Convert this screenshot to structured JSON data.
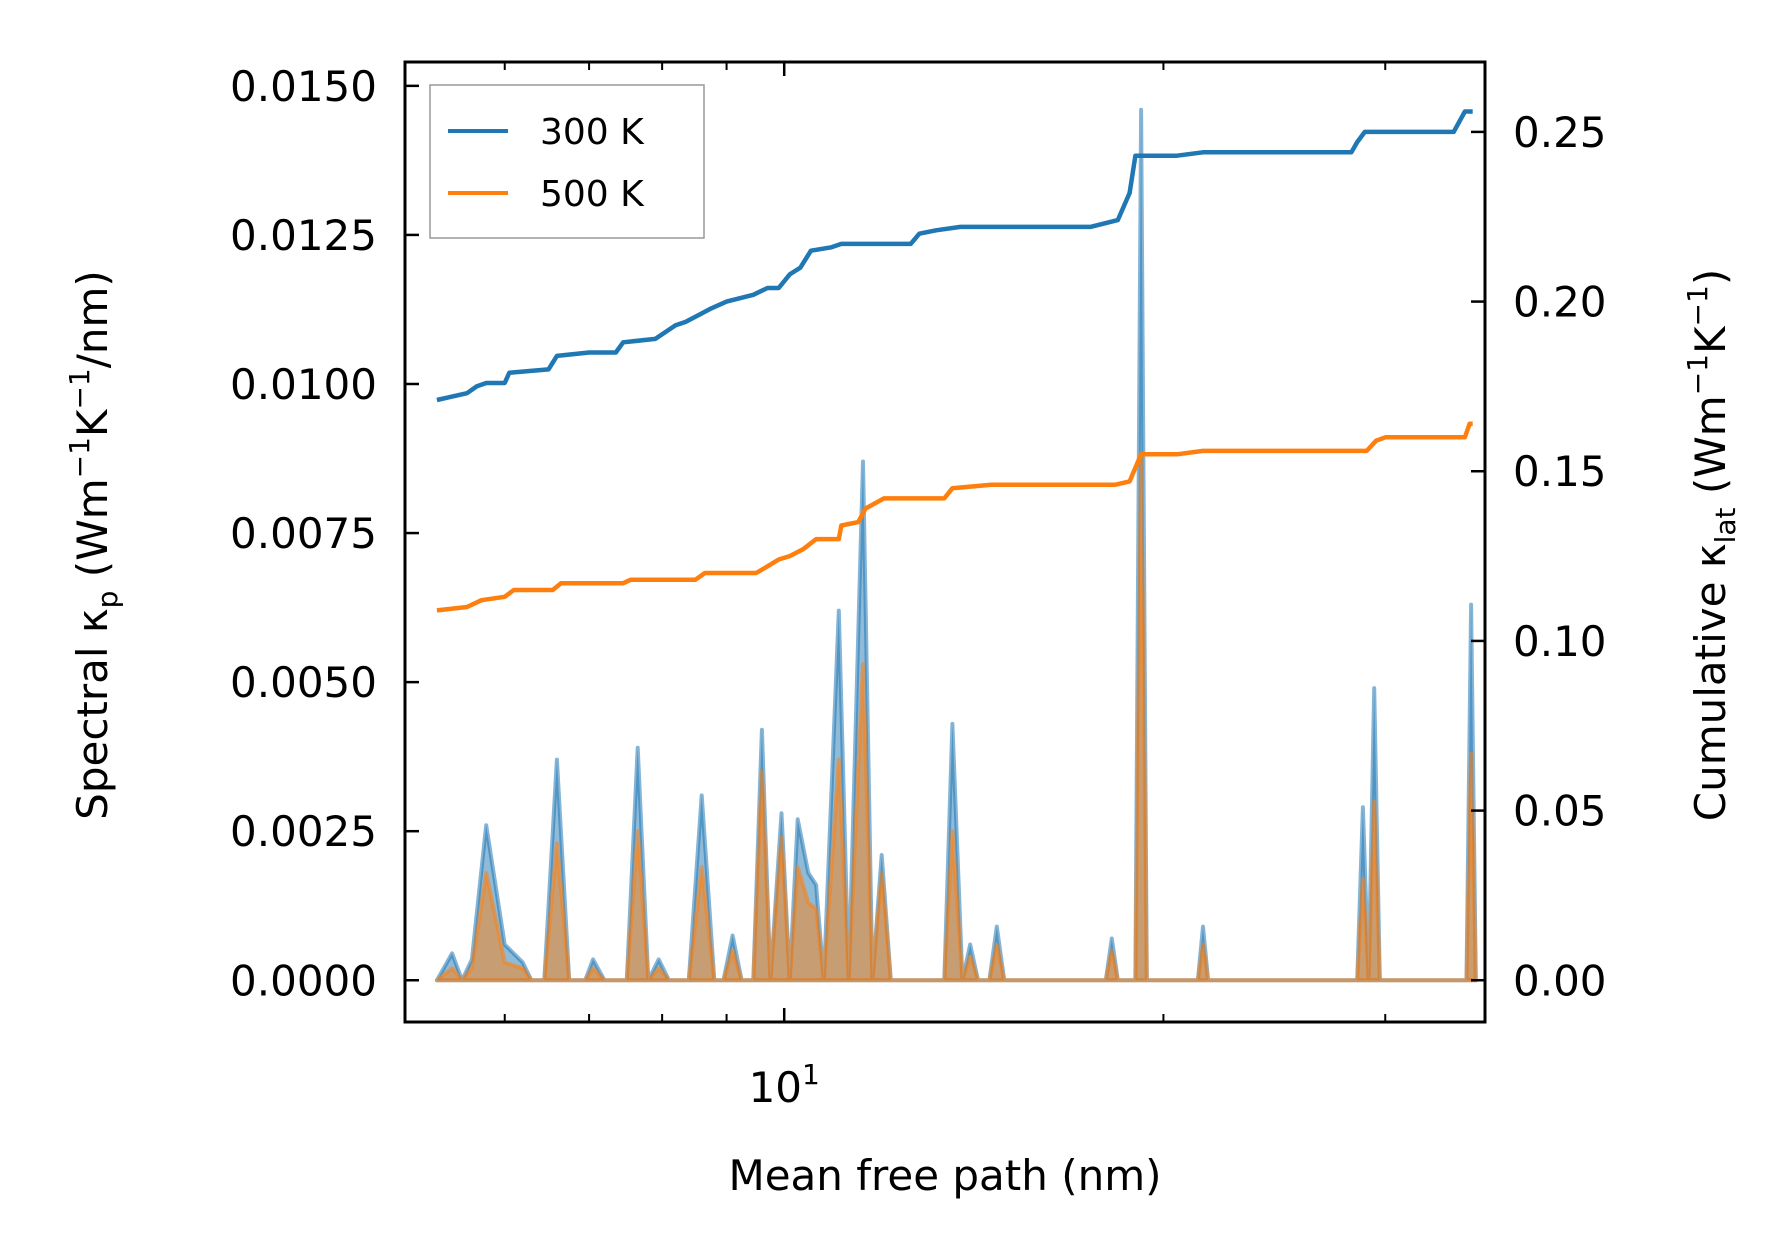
{
  "chart_data": {
    "type": "line",
    "xscale": "log",
    "xlabel": "Mean free path (nm)",
    "xlim": [
      5.0,
      36.0
    ],
    "xtick_labels": [
      {
        "value": 10,
        "base": "10",
        "exp": "1"
      }
    ],
    "y_left": {
      "label_main": "Spectral κ",
      "label_sub": "p",
      "label_unit_a": " (Wm",
      "label_unit_b": "K",
      "label_unit_c": "/nm)",
      "label_exp": "−1",
      "ylim": [
        -0.0007,
        0.0154
      ],
      "ticks": [
        0.0,
        0.0025,
        0.005,
        0.0075,
        0.01,
        0.0125,
        0.015
      ],
      "tick_labels": [
        "0.0000",
        "0.0025",
        "0.0050",
        "0.0075",
        "0.0100",
        "0.0125",
        "0.0150"
      ]
    },
    "y_right": {
      "label_main": "Cumulative κ",
      "label_sub": "lat",
      "label_unit_a": " (Wm",
      "label_unit_b": "K",
      "label_unit_c": ")",
      "label_exp": "−1",
      "ylim": [
        -0.0123,
        0.2706
      ],
      "ticks": [
        0.0,
        0.05,
        0.1,
        0.15,
        0.2,
        0.25
      ],
      "tick_labels": [
        "0.00",
        "0.05",
        "0.10",
        "0.15",
        "0.20",
        "0.25"
      ]
    },
    "legend": {
      "position": "top-left",
      "entries": [
        {
          "name": "300 K",
          "color": "#1f77b4"
        },
        {
          "name": "500 K",
          "color": "#ff7f0e"
        }
      ]
    },
    "series": [
      {
        "name": "300 K",
        "color": "#1f77b4",
        "cumulative": [
          [
            5.3,
            0.171
          ],
          [
            5.45,
            0.172
          ],
          [
            5.6,
            0.173
          ],
          [
            5.7,
            0.175
          ],
          [
            5.8,
            0.176
          ],
          [
            6.0,
            0.176
          ],
          [
            6.05,
            0.179
          ],
          [
            6.5,
            0.18
          ],
          [
            6.6,
            0.184
          ],
          [
            7.0,
            0.185
          ],
          [
            7.35,
            0.185
          ],
          [
            7.45,
            0.188
          ],
          [
            7.9,
            0.189
          ],
          [
            8.2,
            0.193
          ],
          [
            8.35,
            0.194
          ],
          [
            8.55,
            0.196
          ],
          [
            8.75,
            0.198
          ],
          [
            9.0,
            0.2
          ],
          [
            9.45,
            0.202
          ],
          [
            9.7,
            0.204
          ],
          [
            9.9,
            0.204
          ],
          [
            10.1,
            0.208
          ],
          [
            10.3,
            0.21
          ],
          [
            10.5,
            0.215
          ],
          [
            10.9,
            0.216
          ],
          [
            11.1,
            0.217
          ],
          [
            12.6,
            0.217
          ],
          [
            12.8,
            0.22
          ],
          [
            13.2,
            0.221
          ],
          [
            13.8,
            0.222
          ],
          [
            17.5,
            0.222
          ],
          [
            18.4,
            0.224
          ],
          [
            18.8,
            0.232
          ],
          [
            19.0,
            0.243
          ],
          [
            20.5,
            0.243
          ],
          [
            21.5,
            0.244
          ],
          [
            28.2,
            0.244
          ],
          [
            28.5,
            0.247
          ],
          [
            28.9,
            0.25
          ],
          [
            34.0,
            0.25
          ],
          [
            34.7,
            0.256
          ],
          [
            35.2,
            0.256
          ]
        ],
        "spectral": [
          [
            5.3,
            0.0
          ],
          [
            5.45,
            0.00045
          ],
          [
            5.55,
            0.0
          ],
          [
            5.65,
            0.00035
          ],
          [
            5.8,
            0.0026
          ],
          [
            6.0,
            0.0006
          ],
          [
            6.2,
            0.0003
          ],
          [
            6.3,
            0.0
          ],
          [
            6.45,
            0.0
          ],
          [
            6.6,
            0.0037
          ],
          [
            6.75,
            0.0
          ],
          [
            6.95,
            0.0
          ],
          [
            7.05,
            0.00035
          ],
          [
            7.2,
            0.0
          ],
          [
            7.5,
            0.0
          ],
          [
            7.65,
            0.0039
          ],
          [
            7.8,
            0.0
          ],
          [
            7.95,
            0.00035
          ],
          [
            8.1,
            0.0
          ],
          [
            8.4,
            0.0
          ],
          [
            8.6,
            0.0031
          ],
          [
            8.8,
            0.0
          ],
          [
            8.95,
            0.0
          ],
          [
            9.1,
            0.00075
          ],
          [
            9.25,
            0.0
          ],
          [
            9.45,
            0.0
          ],
          [
            9.6,
            0.0042
          ],
          [
            9.75,
            0.0
          ],
          [
            9.95,
            0.0028
          ],
          [
            10.1,
            0.0
          ],
          [
            10.25,
            0.0027
          ],
          [
            10.45,
            0.0018
          ],
          [
            10.6,
            0.0016
          ],
          [
            10.75,
            0.0
          ],
          [
            11.05,
            0.0062
          ],
          [
            11.25,
            0.0
          ],
          [
            11.55,
            0.0087
          ],
          [
            11.75,
            0.0
          ],
          [
            11.95,
            0.0021
          ],
          [
            12.15,
            0.0
          ],
          [
            13.4,
            0.0
          ],
          [
            13.6,
            0.0043
          ],
          [
            13.85,
            0.0
          ],
          [
            14.05,
            0.0006
          ],
          [
            14.25,
            0.0
          ],
          [
            14.55,
            0.0
          ],
          [
            14.75,
            0.0009
          ],
          [
            14.95,
            0.0
          ],
          [
            18.0,
            0.0
          ],
          [
            18.2,
            0.0007
          ],
          [
            18.4,
            0.0
          ],
          [
            19.0,
            0.0
          ],
          [
            19.2,
            0.0146
          ],
          [
            19.4,
            0.0
          ],
          [
            21.3,
            0.0
          ],
          [
            21.5,
            0.0009
          ],
          [
            21.7,
            0.0
          ],
          [
            28.5,
            0.0
          ],
          [
            28.8,
            0.0029
          ],
          [
            29.1,
            0.0
          ],
          [
            29.4,
            0.0049
          ],
          [
            29.7,
            0.0
          ],
          [
            34.8,
            0.0
          ],
          [
            35.1,
            0.0063
          ],
          [
            35.4,
            0.0
          ]
        ]
      },
      {
        "name": "500 K",
        "color": "#ff7f0e",
        "cumulative": [
          [
            5.3,
            0.109
          ],
          [
            5.6,
            0.11
          ],
          [
            5.75,
            0.112
          ],
          [
            6.0,
            0.113
          ],
          [
            6.1,
            0.115
          ],
          [
            6.55,
            0.115
          ],
          [
            6.65,
            0.117
          ],
          [
            7.45,
            0.117
          ],
          [
            7.55,
            0.118
          ],
          [
            8.5,
            0.118
          ],
          [
            8.65,
            0.12
          ],
          [
            9.5,
            0.12
          ],
          [
            9.7,
            0.122
          ],
          [
            9.9,
            0.124
          ],
          [
            10.1,
            0.125
          ],
          [
            10.35,
            0.127
          ],
          [
            10.6,
            0.13
          ],
          [
            11.05,
            0.13
          ],
          [
            11.1,
            0.134
          ],
          [
            11.45,
            0.135
          ],
          [
            11.6,
            0.139
          ],
          [
            12.0,
            0.142
          ],
          [
            13.4,
            0.142
          ],
          [
            13.6,
            0.145
          ],
          [
            14.6,
            0.146
          ],
          [
            18.3,
            0.146
          ],
          [
            18.8,
            0.147
          ],
          [
            19.2,
            0.155
          ],
          [
            20.5,
            0.155
          ],
          [
            21.5,
            0.156
          ],
          [
            29.0,
            0.156
          ],
          [
            29.5,
            0.159
          ],
          [
            30.0,
            0.16
          ],
          [
            34.7,
            0.16
          ],
          [
            35.0,
            0.164
          ],
          [
            35.2,
            0.164
          ]
        ],
        "spectral": [
          [
            5.3,
            0.0
          ],
          [
            5.45,
            0.0002
          ],
          [
            5.55,
            0.0
          ],
          [
            5.65,
            0.0002
          ],
          [
            5.8,
            0.0018
          ],
          [
            6.0,
            0.0003
          ],
          [
            6.2,
            0.0002
          ],
          [
            6.3,
            0.0
          ],
          [
            6.45,
            0.0
          ],
          [
            6.6,
            0.0023
          ],
          [
            6.75,
            0.0
          ],
          [
            6.95,
            0.0
          ],
          [
            7.05,
            0.0002
          ],
          [
            7.2,
            0.0
          ],
          [
            7.5,
            0.0
          ],
          [
            7.65,
            0.0025
          ],
          [
            7.8,
            0.0
          ],
          [
            7.95,
            0.0002
          ],
          [
            8.1,
            0.0
          ],
          [
            8.4,
            0.0
          ],
          [
            8.6,
            0.0019
          ],
          [
            8.8,
            0.0
          ],
          [
            8.95,
            0.0
          ],
          [
            9.1,
            0.0005
          ],
          [
            9.25,
            0.0
          ],
          [
            9.45,
            0.0
          ],
          [
            9.6,
            0.0035
          ],
          [
            9.75,
            0.0
          ],
          [
            9.95,
            0.0024
          ],
          [
            10.1,
            0.0
          ],
          [
            10.25,
            0.0019
          ],
          [
            10.45,
            0.0013
          ],
          [
            10.6,
            0.0012
          ],
          [
            10.75,
            0.0
          ],
          [
            11.05,
            0.0037
          ],
          [
            11.25,
            0.0
          ],
          [
            11.55,
            0.0053
          ],
          [
            11.75,
            0.0
          ],
          [
            11.95,
            0.0018
          ],
          [
            12.15,
            0.0
          ],
          [
            13.4,
            0.0
          ],
          [
            13.6,
            0.0025
          ],
          [
            13.85,
            0.0
          ],
          [
            14.05,
            0.0004
          ],
          [
            14.25,
            0.0
          ],
          [
            14.55,
            0.0
          ],
          [
            14.75,
            0.0006
          ],
          [
            14.95,
            0.0
          ],
          [
            18.0,
            0.0
          ],
          [
            18.2,
            0.0005
          ],
          [
            18.4,
            0.0
          ],
          [
            19.0,
            0.0
          ],
          [
            19.2,
            0.0088
          ],
          [
            19.4,
            0.0
          ],
          [
            21.3,
            0.0
          ],
          [
            21.5,
            0.0006
          ],
          [
            21.7,
            0.0
          ],
          [
            28.5,
            0.0
          ],
          [
            28.8,
            0.0017
          ],
          [
            29.1,
            0.0
          ],
          [
            29.4,
            0.003
          ],
          [
            29.7,
            0.0
          ],
          [
            34.8,
            0.0
          ],
          [
            35.1,
            0.0038
          ],
          [
            35.4,
            0.0
          ]
        ]
      }
    ]
  }
}
